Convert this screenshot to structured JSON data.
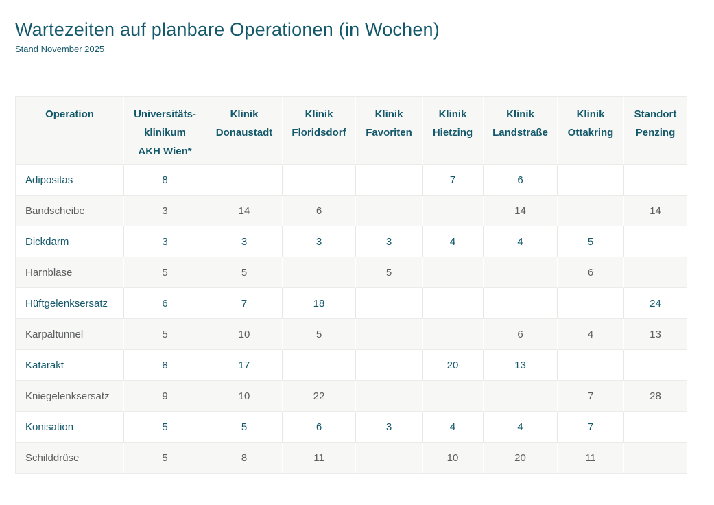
{
  "page": {
    "title": "Wartezeiten auf planbare Operationen (in Wochen)",
    "subtitle": "Stand November 2025"
  },
  "colors": {
    "accent": "#14596b",
    "row_alt_bg": "#f7f7f5",
    "text_gray": "#5d5e60",
    "border": "#ebebe9"
  },
  "table": {
    "header": [
      {
        "lines": [
          "Operation"
        ]
      },
      {
        "lines": [
          "Universitäts-",
          "klinikum",
          "AKH Wien*"
        ]
      },
      {
        "lines": [
          "Klinik",
          "Donaustadt"
        ]
      },
      {
        "lines": [
          "Klinik",
          "Floridsdorf"
        ]
      },
      {
        "lines": [
          "Klinik",
          "Favoriten"
        ]
      },
      {
        "lines": [
          "Klinik",
          "Hietzing"
        ]
      },
      {
        "lines": [
          "Klinik",
          "Landstraße"
        ]
      },
      {
        "lines": [
          "Klinik",
          "Ottakring"
        ]
      },
      {
        "lines": [
          "Standort",
          "Penzing"
        ]
      }
    ],
    "rows": [
      {
        "operation": "Adipositas",
        "values": [
          "8",
          "",
          "",
          "",
          "7",
          "6",
          "",
          ""
        ]
      },
      {
        "operation": "Bandscheibe",
        "values": [
          "3",
          "14",
          "6",
          "",
          "",
          "14",
          "",
          "14"
        ]
      },
      {
        "operation": "Dickdarm",
        "values": [
          "3",
          "3",
          "3",
          "3",
          "4",
          "4",
          "5",
          ""
        ]
      },
      {
        "operation": "Harnblase",
        "values": [
          "5",
          "5",
          "",
          "5",
          "",
          "",
          "6",
          ""
        ]
      },
      {
        "operation": "Hüftgelenksersatz",
        "values": [
          "6",
          "7",
          "18",
          "",
          "",
          "",
          "",
          "24"
        ]
      },
      {
        "operation": "Karpaltunnel",
        "values": [
          "5",
          "10",
          "5",
          "",
          "",
          "6",
          "4",
          "13"
        ]
      },
      {
        "operation": "Katarakt",
        "values": [
          "8",
          "17",
          "",
          "",
          "20",
          "13",
          "",
          ""
        ]
      },
      {
        "operation": "Kniegelenksersatz",
        "values": [
          "9",
          "10",
          "22",
          "",
          "",
          "",
          "7",
          "28"
        ]
      },
      {
        "operation": "Konisation",
        "values": [
          "5",
          "5",
          "6",
          "3",
          "4",
          "4",
          "7",
          ""
        ]
      },
      {
        "operation": "Schilddrüse",
        "values": [
          "5",
          "8",
          "11",
          "",
          "10",
          "20",
          "11",
          ""
        ]
      }
    ]
  }
}
